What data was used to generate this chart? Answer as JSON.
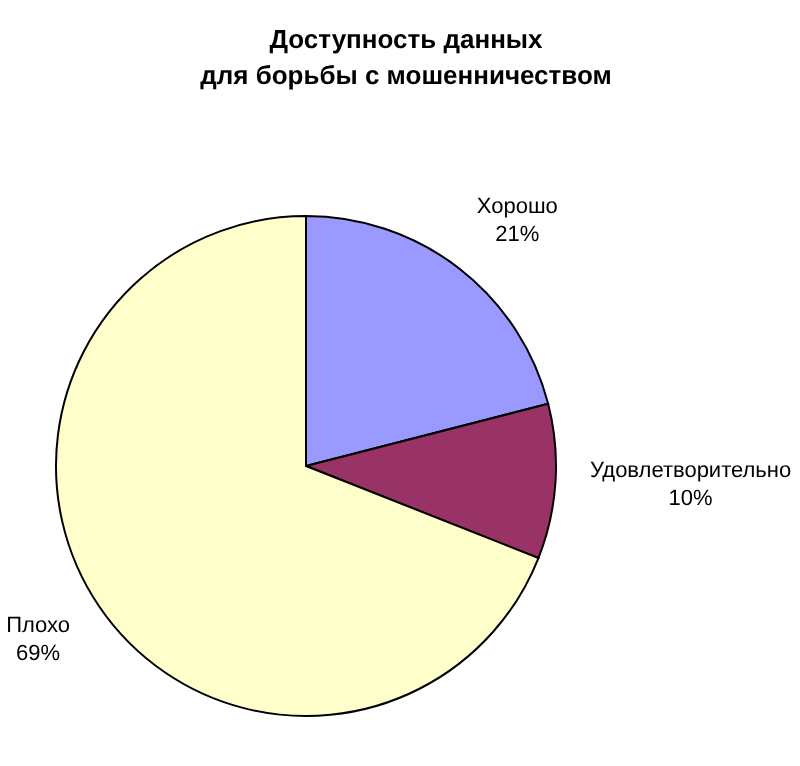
{
  "chart_data": {
    "type": "pie",
    "title": "Доступность данных\nдля борьбы с мошенничеством",
    "categories": [
      "Хорошо",
      "Удовлетворительно",
      "Плохо"
    ],
    "values": [
      21,
      10,
      69
    ],
    "colors": [
      "#9999ff",
      "#993366",
      "#ffffcc"
    ],
    "value_labels": [
      "21%",
      "10%",
      "69%"
    ]
  }
}
